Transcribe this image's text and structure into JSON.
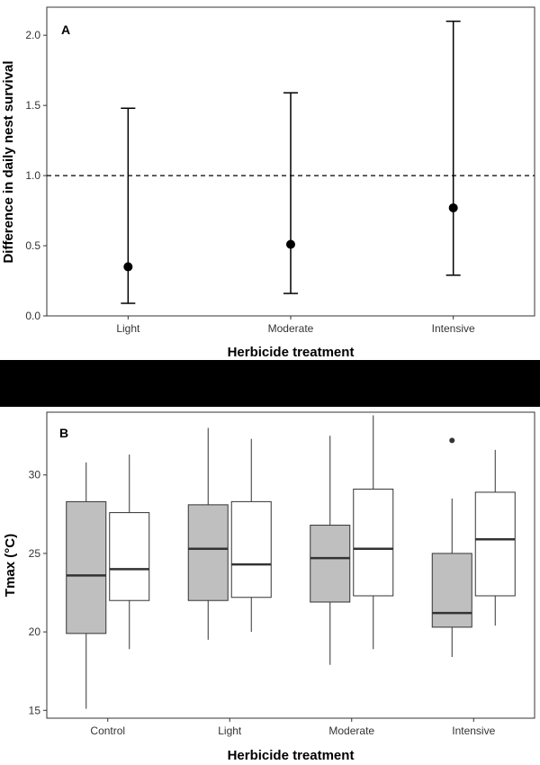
{
  "chart_data": [
    {
      "type": "errorbar",
      "panel_label": "A",
      "title": "",
      "xlabel": "Herbicide treatment",
      "ylabel": "Difference in daily nest survival",
      "categories": [
        "Light",
        "Moderate",
        "Intensive"
      ],
      "series": [
        {
          "estimates": [
            0.35,
            0.51,
            0.77
          ],
          "lower": [
            0.09,
            0.16,
            0.29
          ],
          "upper": [
            1.48,
            1.59,
            2.1
          ]
        }
      ],
      "reference_line": 1.0,
      "ylim": [
        0,
        2.2
      ],
      "yticks": [
        "0.0",
        "0.5",
        "1.0",
        "1.5",
        "2.0"
      ],
      "grid": false
    },
    {
      "type": "boxplot",
      "panel_label": "B",
      "title": "",
      "xlabel": "Herbicide treatment",
      "ylabel": "Tmax (°C)",
      "categories": [
        "Control",
        "Light",
        "Moderate",
        "Intensive"
      ],
      "ylim": [
        14.5,
        34
      ],
      "yticks": [
        "15",
        "20",
        "25",
        "30"
      ],
      "grid": false,
      "fill_colors": [
        "#bfbfbf",
        "#ffffff"
      ],
      "boxes": [
        [
          {
            "whisker_low": 15.1,
            "q1": 19.9,
            "median": 23.6,
            "q3": 28.3,
            "whisker_high": 30.8,
            "outliers": []
          },
          {
            "whisker_low": 18.9,
            "q1": 22.0,
            "median": 24.0,
            "q3": 27.6,
            "whisker_high": 31.3,
            "outliers": []
          }
        ],
        [
          {
            "whisker_low": 19.5,
            "q1": 22.0,
            "median": 25.3,
            "q3": 28.1,
            "whisker_high": 33.0,
            "outliers": []
          },
          {
            "whisker_low": 20.0,
            "q1": 22.2,
            "median": 24.3,
            "q3": 28.3,
            "whisker_high": 32.3,
            "outliers": []
          }
        ],
        [
          {
            "whisker_low": 17.9,
            "q1": 21.9,
            "median": 24.7,
            "q3": 26.8,
            "whisker_high": 32.5,
            "outliers": []
          },
          {
            "whisker_low": 18.9,
            "q1": 22.3,
            "median": 25.3,
            "q3": 29.1,
            "whisker_high": 33.8,
            "outliers": []
          }
        ],
        [
          {
            "whisker_low": 18.4,
            "q1": 20.3,
            "median": 21.2,
            "q3": 25.0,
            "whisker_high": 28.5,
            "outliers": [
              32.2
            ]
          },
          {
            "whisker_low": 20.4,
            "q1": 22.3,
            "median": 25.9,
            "q3": 28.9,
            "whisker_high": 31.6,
            "outliers": []
          }
        ]
      ]
    }
  ]
}
